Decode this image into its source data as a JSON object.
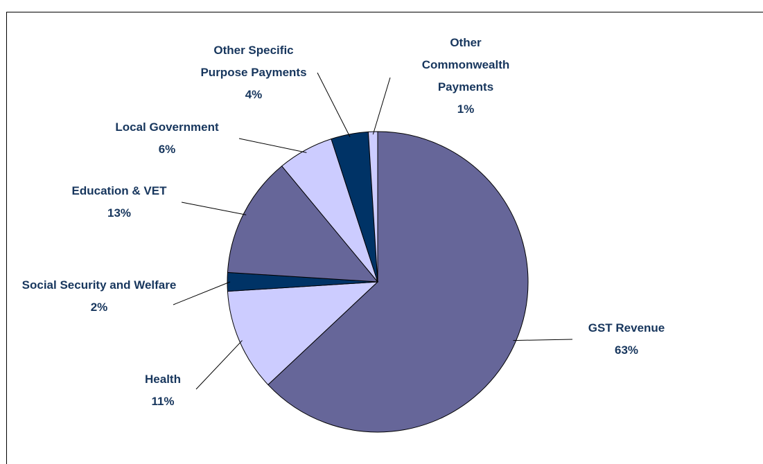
{
  "chart_data": {
    "type": "pie",
    "categories": [
      "GST Revenue",
      "Health",
      "Social Security and Welfare",
      "Education & VET",
      "Local Government",
      "Other Specific Purpose Payments",
      "Other Commonwealth Payments"
    ],
    "values": [
      63,
      11,
      2,
      13,
      6,
      4,
      1
    ],
    "value_labels": [
      "63%",
      "11%",
      "2%",
      "13%",
      "6%",
      "4%",
      "1%"
    ],
    "colors": [
      "#666699",
      "#ccccff",
      "#003366",
      "#666699",
      "#ccccff",
      "#003366",
      "#ccccff"
    ]
  }
}
